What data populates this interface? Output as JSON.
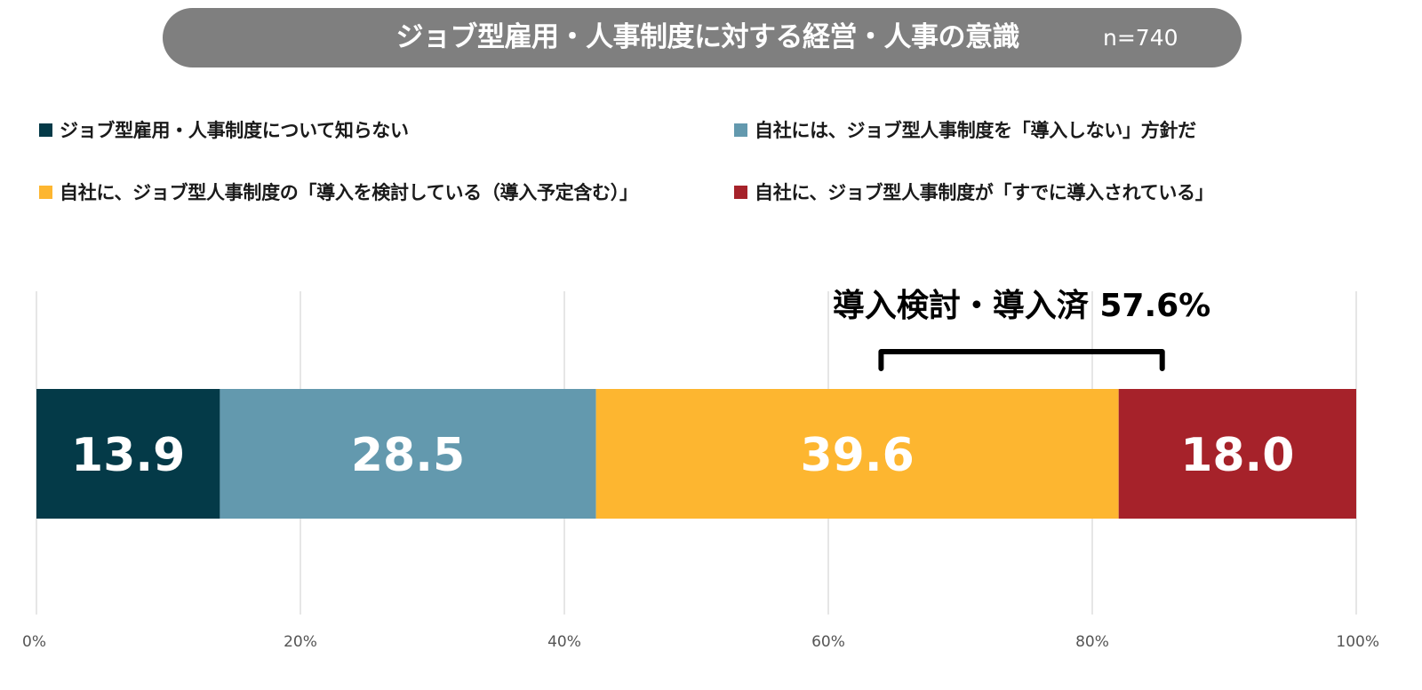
{
  "header": {
    "title": "ジョブ型雇用・人事制度に対する経営・人事の意識",
    "sample": "n=740"
  },
  "legend": [
    {
      "label": "ジョブ型雇用・人事制度について知らない",
      "color": "#043a48"
    },
    {
      "label": "自社には、ジョブ型人事制度を「導入しない」方針だ",
      "color": "#6399ae"
    },
    {
      "label": "自社に、ジョブ型人事制度の「導入を検討している（導入予定含む）」",
      "color": "#fdb630"
    },
    {
      "label": "自社に、ジョブ型人事制度が「すでに導入されている」",
      "color": "#a6222a"
    }
  ],
  "chart_data": {
    "type": "bar",
    "orientation": "horizontal",
    "stacked": true,
    "title": "ジョブ型雇用・人事制度に対する経営・人事の意識",
    "xlabel": "",
    "ylabel": "",
    "xlim": [
      0,
      100
    ],
    "xticks": [
      "0%",
      "20%",
      "40%",
      "60%",
      "80%",
      "100%"
    ],
    "grid": true,
    "legend_position": "top",
    "series": [
      {
        "name": "ジョブ型雇用・人事制度について知らない",
        "value": 13.9,
        "label": "13.9",
        "color": "#043a48"
      },
      {
        "name": "自社には、ジョブ型人事制度を「導入しない」方針だ",
        "value": 28.5,
        "label": "28.5",
        "color": "#6399ae"
      },
      {
        "name": "自社に、ジョブ型人事制度の「導入を検討している（導入予定含む）」",
        "value": 39.6,
        "label": "39.6",
        "color": "#fdb630"
      },
      {
        "name": "自社に、ジョブ型人事制度が「すでに導入されている」",
        "value": 18.0,
        "label": "18.0",
        "color": "#a6222a"
      }
    ],
    "annotation": {
      "text": "導入検討・導入済 57.6%",
      "from": 64.0,
      "to": 85.3
    }
  }
}
